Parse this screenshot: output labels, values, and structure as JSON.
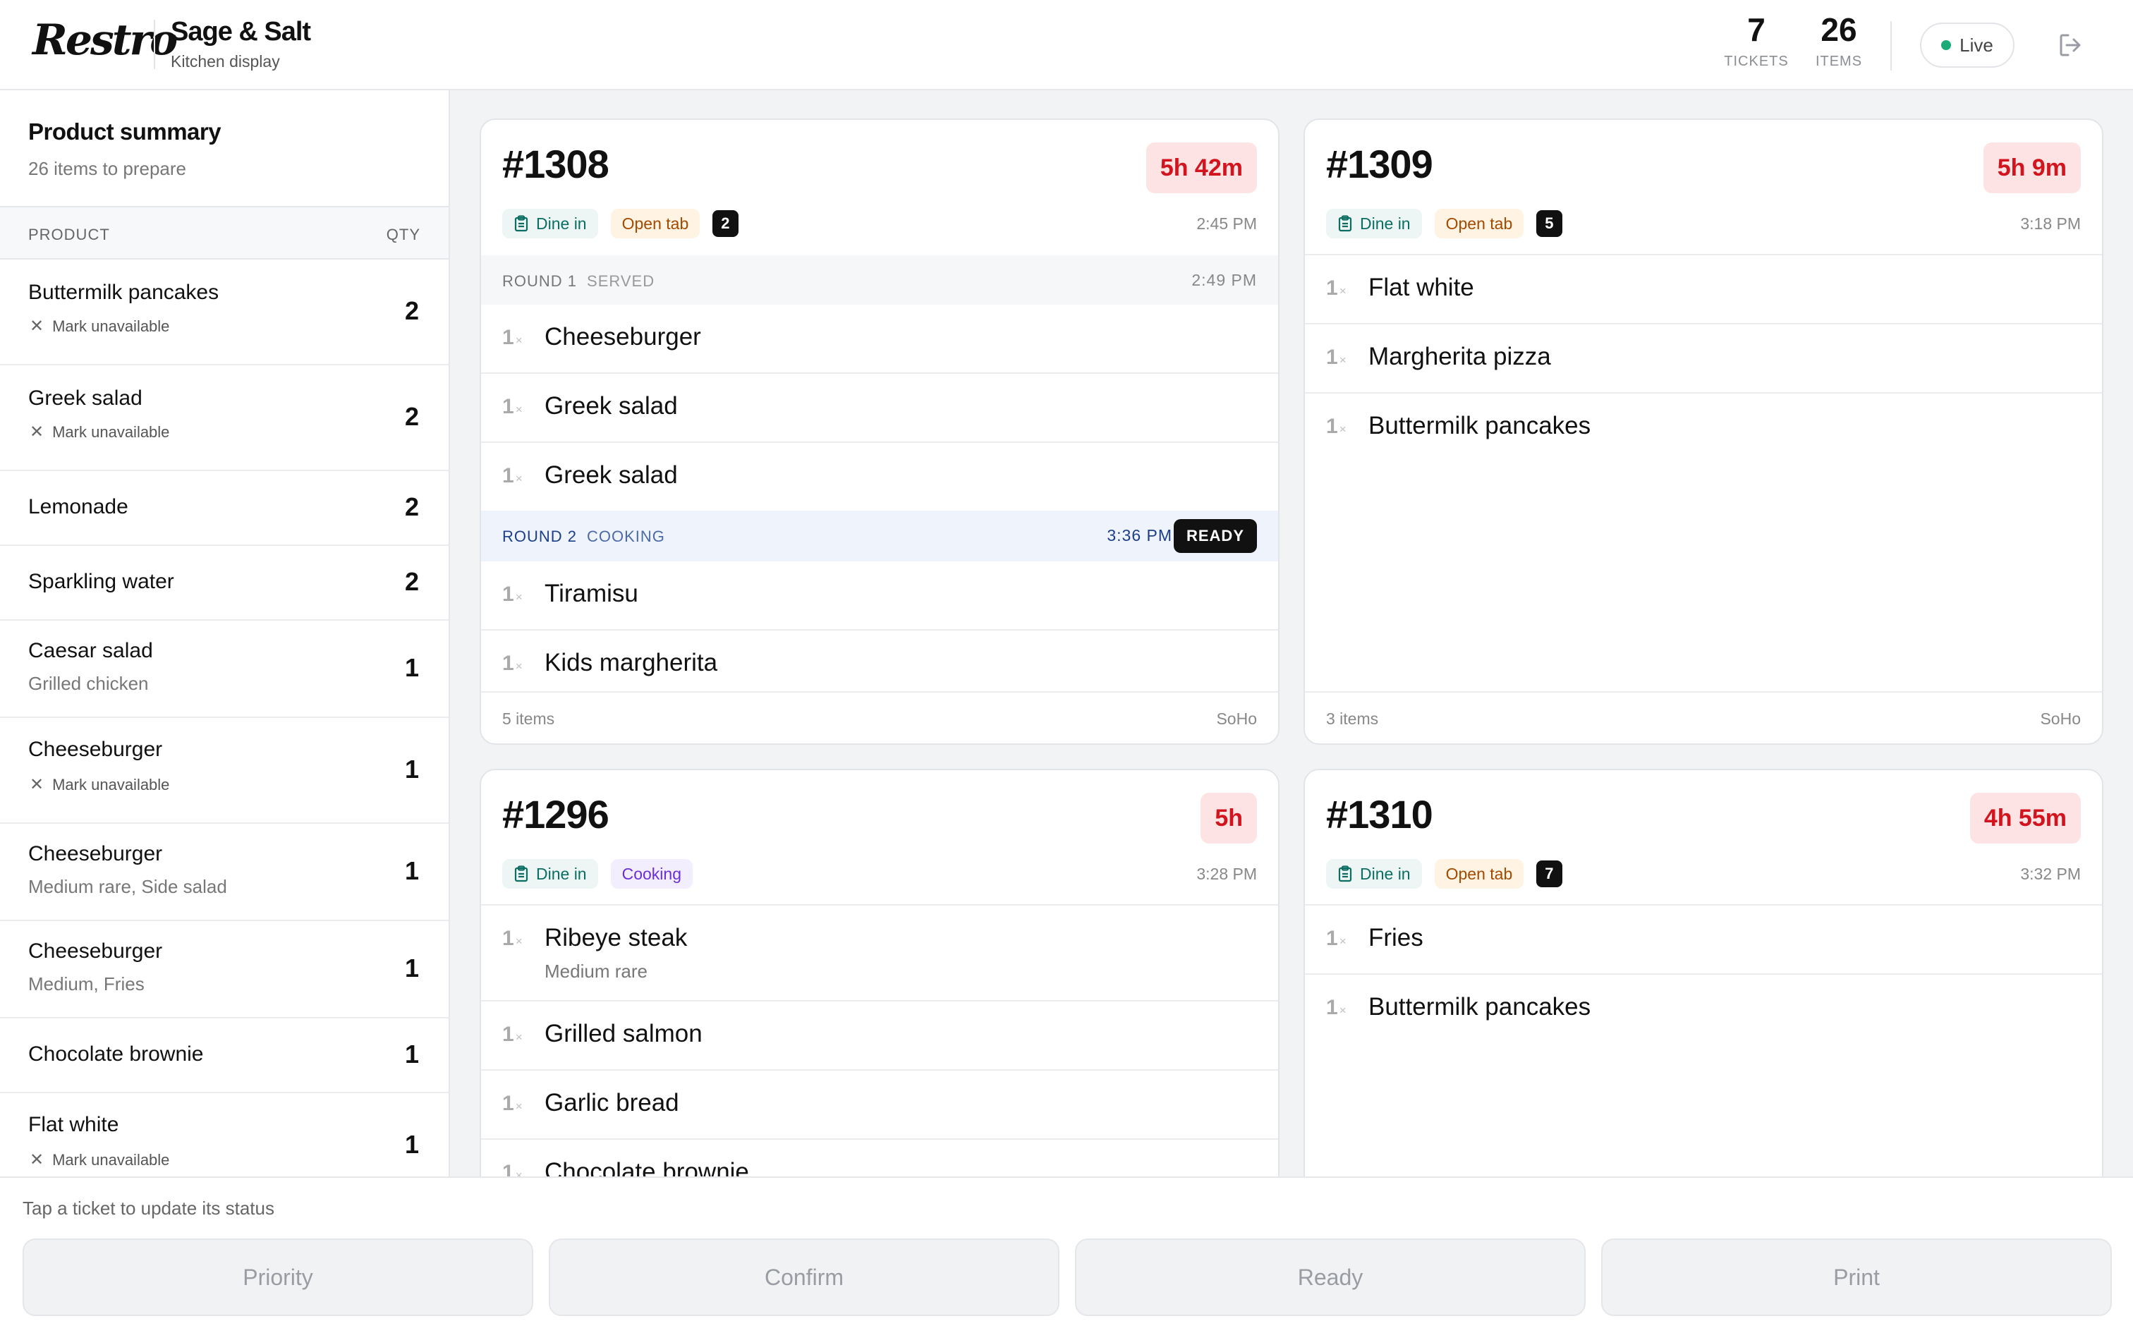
{
  "header": {
    "logo": "Restro",
    "venue_name": "Sage & Salt",
    "venue_sub": "Kitchen display",
    "tickets_count": "7",
    "tickets_label": "TICKETS",
    "items_count": "26",
    "items_label": "ITEMS",
    "live_label": "Live",
    "live_color": "#1bab78"
  },
  "sidebar": {
    "title": "Product summary",
    "subtitle": "26 items to prepare",
    "col_product": "PRODUCT",
    "col_qty": "QTY",
    "items": [
      {
        "name": "Buttermilk pancakes",
        "qty": "2",
        "mark": "Mark unavailable"
      },
      {
        "name": "Greek salad",
        "qty": "2",
        "mark": "Mark unavailable"
      },
      {
        "name": "Lemonade",
        "qty": "2"
      },
      {
        "name": "Sparkling water",
        "qty": "2"
      },
      {
        "name": "Caesar salad",
        "qty": "1",
        "note": "Grilled chicken"
      },
      {
        "name": "Cheeseburger",
        "qty": "1",
        "mark": "Mark unavailable"
      },
      {
        "name": "Cheeseburger",
        "qty": "1",
        "note": "Medium rare, Side salad"
      },
      {
        "name": "Cheeseburger",
        "qty": "1",
        "note": "Medium, Fries"
      },
      {
        "name": "Chocolate brownie",
        "qty": "1"
      },
      {
        "name": "Flat white",
        "qty": "1",
        "mark": "Mark unavailable"
      }
    ]
  },
  "tickets": {
    "t1308": {
      "number": "#1308",
      "timer": "5h 42m",
      "type": "Dine in",
      "status": "Open tab",
      "count": "2",
      "time": "2:45 PM",
      "round1": {
        "label": "ROUND 1",
        "status": "SERVED",
        "time": "2:49 PM",
        "items": [
          {
            "qty": "1",
            "name": "Cheeseburger"
          },
          {
            "qty": "1",
            "name": "Greek salad"
          },
          {
            "qty": "1",
            "name": "Greek salad"
          }
        ]
      },
      "round2": {
        "label": "ROUND 2",
        "status": "COOKING",
        "time": "3:36 PM",
        "action": "READY",
        "items": [
          {
            "qty": "1",
            "name": "Tiramisu"
          },
          {
            "qty": "1",
            "name": "Kids margherita"
          }
        ]
      },
      "foot_items": "5 items",
      "location": "SoHo"
    },
    "t1309": {
      "number": "#1309",
      "timer": "5h 9m",
      "type": "Dine in",
      "status": "Open tab",
      "count": "5",
      "time": "3:18 PM",
      "items": [
        {
          "qty": "1",
          "name": "Flat white"
        },
        {
          "qty": "1",
          "name": "Margherita pizza"
        },
        {
          "qty": "1",
          "name": "Buttermilk pancakes"
        }
      ],
      "foot_items": "3 items",
      "location": "SoHo"
    },
    "t1296": {
      "number": "#1296",
      "timer": "5h",
      "type": "Dine in",
      "status": "Cooking",
      "time": "3:28 PM",
      "items": [
        {
          "qty": "1",
          "name": "Ribeye steak",
          "note": "Medium rare"
        },
        {
          "qty": "1",
          "name": "Grilled salmon"
        },
        {
          "qty": "1",
          "name": "Garlic bread"
        },
        {
          "qty": "1",
          "name": "Chocolate brownie"
        }
      ]
    },
    "t1310": {
      "number": "#1310",
      "timer": "4h 55m",
      "type": "Dine in",
      "status": "Open tab",
      "count": "7",
      "time": "3:32 PM",
      "items": [
        {
          "qty": "1",
          "name": "Fries"
        },
        {
          "qty": "1",
          "name": "Buttermilk pancakes"
        }
      ]
    }
  },
  "qty_suffix": "×",
  "bottom": {
    "hint": "Tap a ticket to update its status",
    "priority": "Priority",
    "confirm": "Confirm",
    "ready": "Ready",
    "print": "Print"
  },
  "colors": {
    "timer_bg": "#fde3e3",
    "timer_text": "#d2141e",
    "dine_in": "#0b6e63",
    "open_tab": "#a34a00",
    "cooking": "#6a2fd8",
    "round_cooking": "#1d3f8a"
  }
}
